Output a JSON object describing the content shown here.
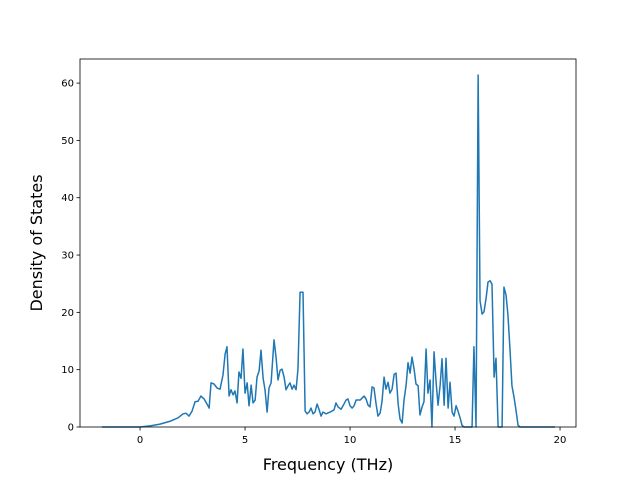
{
  "chart_data": {
    "type": "line",
    "x_label": "Frequency (THz)",
    "y_label": "Density of States",
    "color": "#1f77b4",
    "xlim": [
      -2.86,
      20.76
    ],
    "xticks": [
      0,
      5,
      10,
      15,
      20
    ],
    "ylim": [
      0,
      64.2
    ],
    "yticks": [
      0,
      10,
      20,
      30,
      40,
      50,
      60
    ],
    "x": [
      -1.81,
      0,
      0.48,
      0.95,
      1.43,
      1.81,
      2.05,
      2.19,
      2.33,
      2.48,
      2.62,
      2.76,
      2.9,
      3.05,
      3.19,
      3.29,
      3.38,
      3.52,
      3.67,
      3.81,
      3.95,
      4.05,
      4.14,
      4.24,
      4.33,
      4.43,
      4.52,
      4.62,
      4.71,
      4.81,
      4.9,
      5.0,
      5.1,
      5.19,
      5.29,
      5.38,
      5.48,
      5.57,
      5.67,
      5.76,
      5.86,
      5.95,
      6.05,
      6.14,
      6.24,
      6.38,
      6.48,
      6.57,
      6.67,
      6.76,
      6.86,
      6.95,
      7.05,
      7.14,
      7.24,
      7.33,
      7.43,
      7.52,
      7.62,
      7.76,
      7.86,
      7.95,
      8.05,
      8.14,
      8.24,
      8.33,
      8.43,
      8.52,
      8.62,
      8.71,
      8.86,
      9.05,
      9.24,
      9.33,
      9.43,
      9.57,
      9.71,
      9.81,
      9.9,
      10.0,
      10.1,
      10.19,
      10.29,
      10.48,
      10.67,
      10.76,
      10.86,
      10.95,
      11.05,
      11.14,
      11.24,
      11.33,
      11.43,
      11.52,
      11.62,
      11.71,
      11.81,
      11.9,
      12.0,
      12.1,
      12.19,
      12.29,
      12.38,
      12.48,
      12.57,
      12.67,
      12.76,
      12.86,
      12.95,
      13.05,
      13.14,
      13.24,
      13.33,
      13.43,
      13.52,
      13.62,
      13.71,
      13.81,
      13.9,
      14.0,
      14.1,
      14.19,
      14.29,
      14.38,
      14.48,
      14.57,
      14.67,
      14.76,
      14.86,
      14.95,
      15.05,
      15.14,
      15.24,
      15.33,
      15.43,
      15.81,
      15.9,
      16.0,
      16.1,
      16.19,
      16.29,
      16.38,
      16.48,
      16.57,
      16.67,
      16.76,
      16.86,
      16.95,
      17.05,
      17.24,
      17.33,
      17.43,
      17.52,
      17.62,
      17.71,
      17.81,
      17.9,
      18.0,
      18.1,
      19.76
    ],
    "values": [
      0,
      0,
      0.2,
      0.5,
      1.0,
      1.6,
      2.3,
      2.4,
      1.9,
      2.8,
      4.4,
      4.5,
      5.4,
      4.9,
      4.0,
      3.3,
      7.7,
      7.5,
      6.8,
      6.6,
      9.1,
      12.7,
      14.0,
      5.4,
      6.5,
      5.6,
      6.3,
      4.2,
      9.6,
      8.5,
      13.6,
      5.9,
      7.7,
      3.7,
      7.3,
      4.2,
      4.7,
      8.7,
      9.8,
      13.4,
      8.5,
      6.5,
      2.6,
      6.8,
      7.7,
      15.2,
      12.0,
      8.2,
      9.9,
      10.1,
      8.7,
      6.5,
      7.2,
      7.7,
      6.6,
      7.3,
      6.5,
      10.1,
      23.5,
      23.5,
      2.8,
      2.3,
      2.6,
      3.3,
      2.3,
      2.6,
      4.0,
      3.1,
      1.9,
      2.6,
      2.3,
      2.6,
      3.0,
      4.2,
      3.5,
      3.1,
      4.0,
      4.7,
      4.9,
      3.7,
      3.3,
      3.7,
      4.7,
      4.7,
      5.4,
      4.9,
      3.8,
      3.5,
      7.0,
      6.8,
      4.0,
      1.9,
      2.4,
      4.4,
      8.7,
      6.6,
      7.8,
      5.9,
      6.6,
      9.2,
      9.4,
      4.0,
      1.4,
      0.7,
      4.7,
      7.3,
      11.2,
      9.4,
      12.2,
      10.1,
      7.5,
      7.2,
      2.1,
      3.5,
      4.4,
      13.6,
      5.9,
      8.2,
      0,
      13.1,
      7.7,
      3.8,
      7.3,
      11.9,
      3.8,
      12.0,
      3.3,
      7.8,
      2.6,
      1.9,
      3.7,
      2.8,
      1.6,
      0.3,
      0,
      0,
      14.0,
      0,
      61.4,
      22.0,
      19.7,
      20.1,
      22.5,
      25.3,
      25.5,
      24.9,
      8.7,
      12.0,
      0,
      0,
      24.4,
      23.0,
      19.5,
      13.3,
      7.2,
      5.2,
      3.0,
      0.3,
      0,
      0
    ]
  }
}
